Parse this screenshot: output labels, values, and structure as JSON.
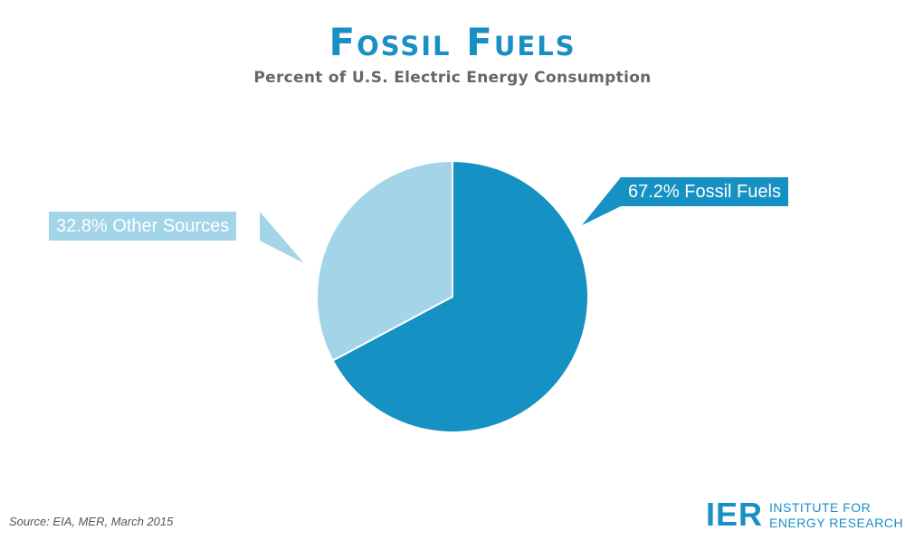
{
  "title": "Fossil Fuels",
  "subtitle": "Percent of U.S. Electric Energy Consumption",
  "chart_data": {
    "type": "pie",
    "slices": [
      {
        "label": "Fossil Fuels",
        "value": 67.2,
        "display": "67.2% Fossil Fuels",
        "color": "#1691c4"
      },
      {
        "label": "Other Sources",
        "value": 32.8,
        "display": "32.8% Other Sources",
        "color": "#a4d4e7"
      }
    ],
    "start": "12 o'clock",
    "direction": "clockwise"
  },
  "source": "Source: EIA, MER, March 2015",
  "logo": {
    "mark": "IER",
    "line1": "INSTITUTE FOR",
    "line2": "ENERGY RESEARCH",
    "color": "#1a8fc4"
  }
}
